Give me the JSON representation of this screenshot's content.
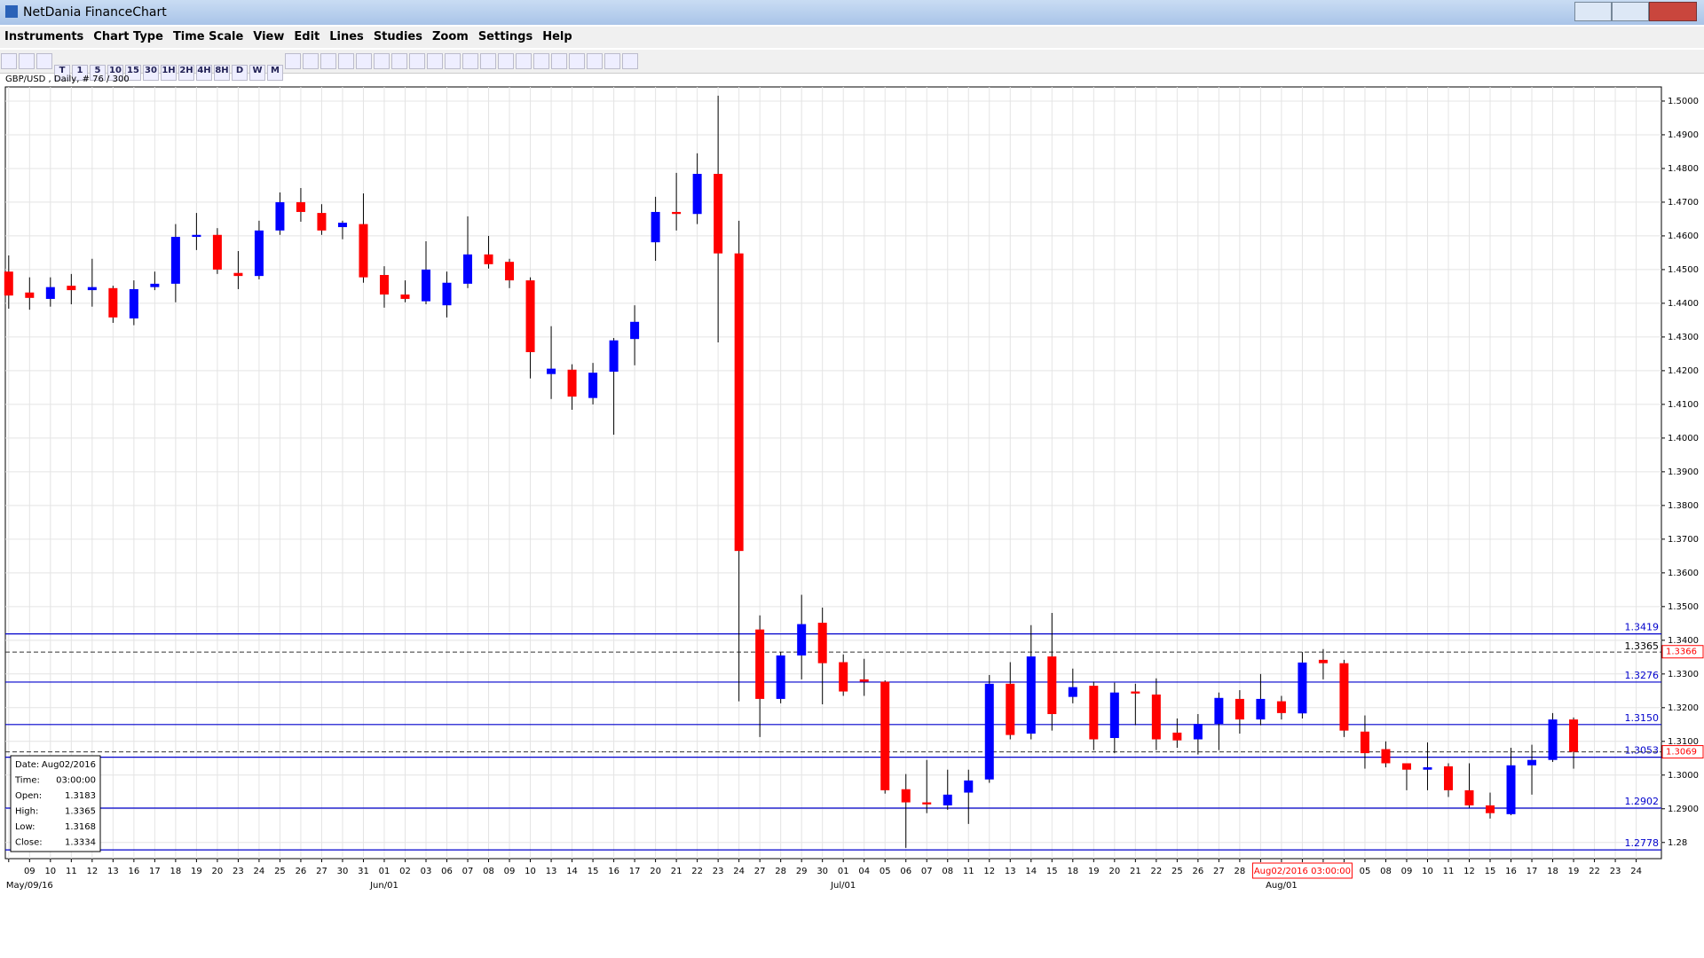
{
  "window": {
    "title": "NetDania FinanceChart"
  },
  "menu": [
    "Instruments",
    "Chart Type",
    "Time Scale",
    "View",
    "Edit",
    "Lines",
    "Studies",
    "Zoom",
    "Settings",
    "Help"
  ],
  "toolbar": {
    "timeframes": [
      "T",
      "1",
      "5",
      "10",
      "15",
      "30",
      "1H",
      "2H",
      "4H",
      "8H",
      "D",
      "W",
      "M"
    ]
  },
  "chart_data": {
    "type": "candlestick",
    "title": "GBP/USD , Daily, # 76 / 300",
    "up_color": "#0000ff",
    "down_color": "#ff0000",
    "grid": true,
    "ylim": [
      1.2752,
      1.5042
    ],
    "yticks": [
      1.28,
      {
        "value": 1.29,
        "label": "1.2900"
      },
      {
        "value": 1.3,
        "label": "1.3000"
      },
      {
        "value": 1.31,
        "label": "1.3100"
      },
      {
        "value": 1.32,
        "label": "1.3200"
      },
      {
        "value": 1.33,
        "label": "1.3300"
      },
      {
        "value": 1.34,
        "label": "1.3400"
      },
      {
        "value": 1.35,
        "label": "1.3500"
      },
      {
        "value": 1.36,
        "label": "1.3600"
      },
      {
        "value": 1.37,
        "label": "1.3700"
      },
      {
        "value": 1.38,
        "label": "1.3800"
      },
      {
        "value": 1.39,
        "label": "1.3900"
      },
      {
        "value": 1.4,
        "label": "1.4000"
      },
      {
        "value": 1.41,
        "label": "1.4100"
      },
      {
        "value": 1.42,
        "label": "1.4200"
      },
      {
        "value": 1.43,
        "label": "1.4300"
      },
      {
        "value": 1.44,
        "label": "1.4400"
      },
      {
        "value": 1.45,
        "label": "1.4500"
      },
      {
        "value": 1.46,
        "label": "1.4600"
      },
      {
        "value": 1.47,
        "label": "1.4700"
      },
      {
        "value": 1.48,
        "label": "1.4800"
      },
      {
        "value": 1.49,
        "label": "1.4900"
      },
      {
        "value": 1.5,
        "label": "1.5000"
      }
    ],
    "x_labels": [
      null,
      "09",
      "10",
      "11",
      "12",
      "13",
      "16",
      "17",
      "18",
      "19",
      "20",
      "23",
      "24",
      "25",
      "26",
      "27",
      "30",
      "31",
      "01",
      "02",
      "03",
      "06",
      "07",
      "08",
      "09",
      "10",
      "13",
      "14",
      "15",
      "16",
      "17",
      "20",
      "21",
      "22",
      "23",
      "24",
      "27",
      "28",
      "29",
      "30",
      "01",
      "04",
      "05",
      "06",
      "07",
      "08",
      "11",
      "12",
      "13",
      "14",
      "15",
      "18",
      "19",
      "20",
      "21",
      "22",
      "25",
      "26",
      "27",
      "28",
      null,
      null,
      null,
      null,
      null,
      "05",
      "08",
      "09",
      "10",
      "11",
      "12",
      "15",
      "16",
      "17",
      "18",
      "19",
      "22",
      "23",
      "24"
    ],
    "month_labels": [
      {
        "label": "May/09/16",
        "at": 1
      },
      {
        "label": "Jun/01",
        "at": 18
      },
      {
        "label": "Jul/01",
        "at": 40
      },
      {
        "label": "Aug/01",
        "at": 61
      }
    ],
    "crosshair": {
      "label": "Aug02/2016 03:00:00",
      "at": 62
    },
    "open": [
      1.4494,
      1.4432,
      1.4413,
      1.4452,
      1.4439,
      1.4445,
      1.4355,
      1.4448,
      1.4458,
      1.4597,
      1.4603,
      1.449,
      1.4481,
      1.4616,
      1.47,
      1.4668,
      1.4626,
      1.4635,
      1.4484,
      1.4426,
      1.4406,
      1.4394,
      1.4458,
      1.4545,
      1.4523,
      1.4468,
      1.419,
      1.4203,
      1.4119,
      1.4197,
      1.4294,
      1.4581,
      1.4671,
      1.4665,
      1.4784,
      1.4548,
      1.3432,
      1.3226,
      1.3355,
      1.3452,
      1.3335,
      1.3284,
      1.3277,
      1.2958,
      1.2919,
      1.291,
      1.2948,
      1.2987,
      1.3271,
      1.3123,
      1.3352,
      1.3232,
      1.3265,
      1.311,
      1.3248,
      1.3239,
      1.3126,
      1.3106,
      1.3152,
      1.3226,
      1.3165,
      1.3219,
      1.3183,
      1.3342,
      1.3332,
      1.3129,
      1.3077,
      1.3035,
      1.3016,
      1.3026,
      1.2955,
      1.291,
      1.2884,
      1.3029,
      1.3045,
      1.3165
    ],
    "high": [
      1.4542,
      1.4477,
      1.4477,
      1.4487,
      1.4532,
      1.4452,
      1.4468,
      1.4494,
      1.4635,
      1.4668,
      1.4623,
      1.4555,
      1.4645,
      1.4729,
      1.4742,
      1.4694,
      1.4645,
      1.4726,
      1.451,
      1.4468,
      1.4584,
      1.4494,
      1.4658,
      1.46,
      1.4532,
      1.4477,
      1.4332,
      1.4219,
      1.4223,
      1.4297,
      1.4394,
      1.4716,
      1.4787,
      1.4845,
      1.5016,
      1.4645,
      1.3474,
      1.3365,
      1.3535,
      1.3497,
      1.3358,
      1.3345,
      1.3281,
      1.3003,
      1.3045,
      1.3016,
      1.3016,
      1.3297,
      1.3335,
      1.3445,
      1.3481,
      1.3316,
      1.3277,
      1.3274,
      1.3271,
      1.3287,
      1.3168,
      1.3181,
      1.3245,
      1.3252,
      1.33,
      1.3235,
      1.3365,
      1.3374,
      1.3342,
      1.3177,
      1.31,
      1.3035,
      1.3097,
      1.3035,
      1.3035,
      1.2948,
      1.3081,
      1.309,
      1.3184,
      1.3171
    ],
    "low": [
      1.4384,
      1.4381,
      1.439,
      1.4397,
      1.439,
      1.4342,
      1.4335,
      1.4439,
      1.4403,
      1.4558,
      1.4487,
      1.4442,
      1.4471,
      1.4603,
      1.4642,
      1.4603,
      1.459,
      1.4461,
      1.4387,
      1.4403,
      1.4397,
      1.4358,
      1.4445,
      1.4503,
      1.4445,
      1.4177,
      1.4116,
      1.4084,
      1.41,
      1.401,
      1.4216,
      1.4526,
      1.4616,
      1.4635,
      1.4284,
      1.3219,
      1.3113,
      1.3213,
      1.3284,
      1.321,
      1.3235,
      1.3235,
      1.2945,
      1.2784,
      1.2887,
      1.2897,
      1.2855,
      1.2977,
      1.3106,
      1.3106,
      1.3132,
      1.3213,
      1.3074,
      1.3065,
      1.3148,
      1.3074,
      1.3081,
      1.3061,
      1.3074,
      1.3123,
      1.3148,
      1.3165,
      1.3168,
      1.3284,
      1.3113,
      1.3019,
      1.3023,
      1.2955,
      1.2955,
      1.2935,
      1.2903,
      1.2871,
      1.2881,
      1.2942,
      1.3039,
      1.3019
    ],
    "close": [
      1.4423,
      1.4416,
      1.4448,
      1.4439,
      1.4448,
      1.4358,
      1.4442,
      1.4458,
      1.4597,
      1.4603,
      1.45,
      1.4481,
      1.4616,
      1.47,
      1.4671,
      1.4616,
      1.4639,
      1.4477,
      1.4426,
      1.4413,
      1.45,
      1.4461,
      1.4545,
      1.4516,
      1.4468,
      1.4255,
      1.4206,
      1.4123,
      1.4194,
      1.429,
      1.4345,
      1.4671,
      1.4665,
      1.4784,
      1.4548,
      1.3665,
      1.3226,
      1.3355,
      1.3448,
      1.3332,
      1.3248,
      1.3277,
      1.2955,
      1.2919,
      1.2913,
      1.2942,
      1.2984,
      1.3271,
      1.3119,
      1.3352,
      1.3181,
      1.3261,
      1.3106,
      1.3245,
      1.3242,
      1.3106,
      1.3103,
      1.3152,
      1.3229,
      1.3165,
      1.3226,
      1.3184,
      1.3334,
      1.3332,
      1.3132,
      1.3065,
      1.3035,
      1.3016,
      1.3023,
      1.2955,
      1.291,
      1.2887,
      1.3029,
      1.3045,
      1.3165,
      1.3069
    ],
    "levels": [
      1.3419,
      1.3276,
      {
        "value": 1.315,
        "label": "1.3150"
      },
      1.3053,
      1.2902,
      1.2778
    ],
    "level_color": "#0000cc",
    "dashed_lines": [
      {
        "value": 1.3365,
        "labeled": true
      },
      {
        "value": 1.3069,
        "labeled": false
      }
    ],
    "price_markers": [
      1.3366,
      1.3069
    ],
    "info_box": [
      {
        "label": "Date:",
        "value": "Aug02/2016"
      },
      {
        "label": "Time:",
        "value": "03:00:00"
      },
      {
        "label": "Open:",
        "value": 1.3183
      },
      {
        "label": "High:",
        "value": 1.3365
      },
      {
        "label": "Low:",
        "value": 1.3168
      },
      {
        "label": "Close:",
        "value": 1.3334
      }
    ]
  }
}
